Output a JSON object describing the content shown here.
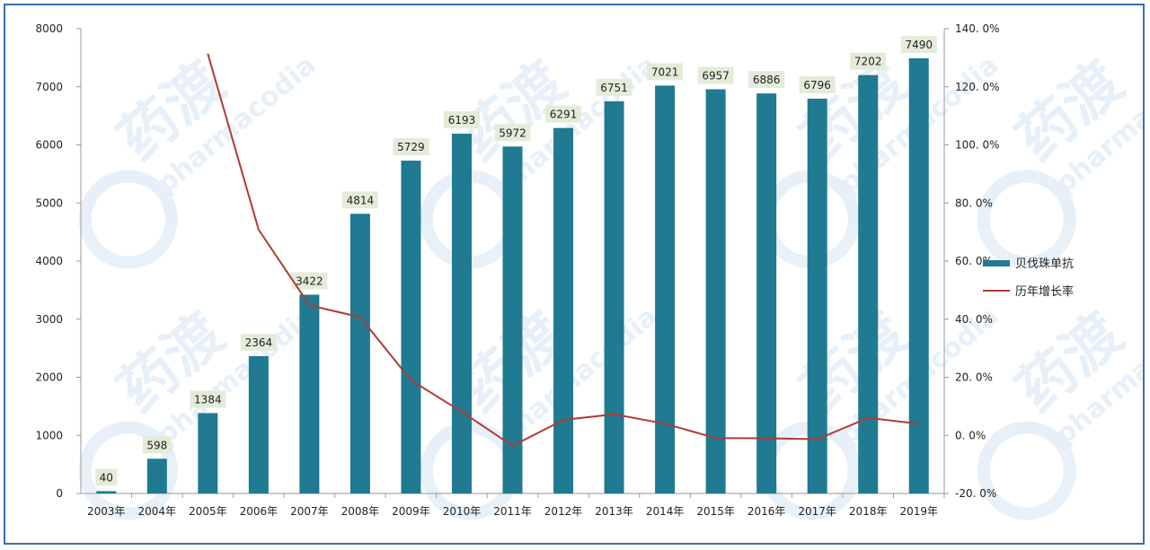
{
  "chart_data": {
    "type": "bar",
    "categories": [
      "2003年",
      "2004年",
      "2005年",
      "2006年",
      "2007年",
      "2008年",
      "2009年",
      "2010年",
      "2011年",
      "2012年",
      "2013年",
      "2014年",
      "2015年",
      "2016年",
      "2017年",
      "2018年",
      "2019年"
    ],
    "series": [
      {
        "name": "贝伐珠单抗",
        "type": "bar",
        "axis": "left",
        "color": "#1f7a92",
        "values": [
          40,
          598,
          1384,
          2364,
          3422,
          4814,
          5729,
          6193,
          5972,
          6291,
          6751,
          7021,
          6957,
          6886,
          6796,
          7202,
          7490
        ]
      },
      {
        "name": "历年增长率",
        "type": "line",
        "axis": "right",
        "color": "#b23a35",
        "values": [
          null,
          null,
          131.4,
          70.8,
          44.8,
          40.7,
          19.0,
          8.1,
          -3.6,
          5.3,
          7.3,
          4.0,
          -0.9,
          -1.0,
          -1.3,
          6.0,
          4.0
        ]
      }
    ],
    "left_axis": {
      "ylim": [
        0,
        8000
      ],
      "ticks": [
        "0",
        "1000",
        "2000",
        "3000",
        "4000",
        "5000",
        "6000",
        "7000",
        "8000"
      ]
    },
    "right_axis": {
      "ylim": [
        -20,
        140
      ],
      "ticks": [
        "-20.0%",
        "0.0%",
        "20.0%",
        "40.0%",
        "60.0%",
        "80.0%",
        "100.0%",
        "120.0%",
        "140.0%"
      ]
    },
    "legend_position": "right",
    "grid": false
  },
  "watermark": {
    "brand_cn": "药渡",
    "brand_en": "pharmacodia"
  }
}
